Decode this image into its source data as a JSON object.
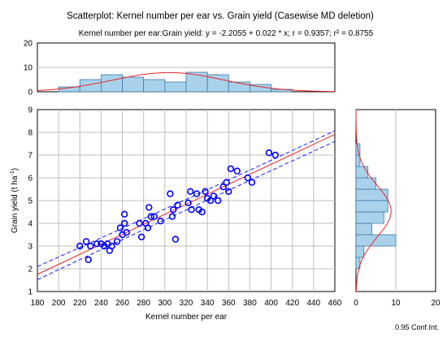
{
  "chart_data": {
    "type": "scatter",
    "title": "Scatterplot: Kernel number per ear vs. Grain yield (Casewise MD deletion)",
    "subtitle": "Kernel number per ear:Grain yield: y = -2.2055 + 0.022 * x;  r = 0.9357; r² = 0.8755",
    "xlabel": "Kernel number per ear",
    "ylabel_main": "Grain yield (t ha",
    "ylabel_sup": "-1",
    "ylabel_close": ")",
    "footnote": "0.95 Conf.Int.",
    "xlim": [
      180,
      460
    ],
    "ylim": [
      1,
      9
    ],
    "grid": true,
    "x_ticks": [
      "180",
      "200",
      "220",
      "240",
      "260",
      "280",
      "300",
      "320",
      "340",
      "360",
      "380",
      "400",
      "420",
      "440",
      "460"
    ],
    "y_ticks": [
      "1",
      "2",
      "3",
      "4",
      "5",
      "6",
      "7",
      "8",
      "9"
    ],
    "regression": {
      "intercept": -2.2055,
      "slope": 0.022,
      "r": 0.9357,
      "r2": 0.8755
    },
    "confidence_band": {
      "lower": [
        [
          180,
          1.52
        ],
        [
          460,
          7.6
        ]
      ],
      "upper": [
        [
          180,
          2.1
        ],
        [
          460,
          8.07
        ]
      ]
    },
    "points": [
      {
        "x": 220,
        "y": 3.0
      },
      {
        "x": 226,
        "y": 3.2
      },
      {
        "x": 228,
        "y": 2.4
      },
      {
        "x": 230,
        "y": 3.0
      },
      {
        "x": 236,
        "y": 3.1
      },
      {
        "x": 240,
        "y": 3.1
      },
      {
        "x": 243,
        "y": 3.0
      },
      {
        "x": 246,
        "y": 3.1
      },
      {
        "x": 248,
        "y": 2.8
      },
      {
        "x": 250,
        "y": 3.0
      },
      {
        "x": 255,
        "y": 3.2
      },
      {
        "x": 258,
        "y": 3.8
      },
      {
        "x": 260,
        "y": 3.5
      },
      {
        "x": 262,
        "y": 4.0
      },
      {
        "x": 262,
        "y": 4.4
      },
      {
        "x": 264,
        "y": 3.6
      },
      {
        "x": 276,
        "y": 4.0
      },
      {
        "x": 278,
        "y": 3.4
      },
      {
        "x": 282,
        "y": 4.0
      },
      {
        "x": 284,
        "y": 3.8
      },
      {
        "x": 285,
        "y": 4.7
      },
      {
        "x": 287,
        "y": 4.3
      },
      {
        "x": 290,
        "y": 4.3
      },
      {
        "x": 296,
        "y": 4.1
      },
      {
        "x": 305,
        "y": 5.3
      },
      {
        "x": 307,
        "y": 4.3
      },
      {
        "x": 308,
        "y": 4.6
      },
      {
        "x": 310,
        "y": 3.3
      },
      {
        "x": 312,
        "y": 4.8
      },
      {
        "x": 322,
        "y": 4.9
      },
      {
        "x": 324,
        "y": 5.4
      },
      {
        "x": 325,
        "y": 4.6
      },
      {
        "x": 330,
        "y": 5.3
      },
      {
        "x": 332,
        "y": 4.6
      },
      {
        "x": 335,
        "y": 4.5
      },
      {
        "x": 338,
        "y": 5.4
      },
      {
        "x": 340,
        "y": 5.1
      },
      {
        "x": 343,
        "y": 5.0
      },
      {
        "x": 346,
        "y": 5.2
      },
      {
        "x": 350,
        "y": 5.0
      },
      {
        "x": 355,
        "y": 5.6
      },
      {
        "x": 358,
        "y": 5.8
      },
      {
        "x": 360,
        "y": 5.4
      },
      {
        "x": 362,
        "y": 6.4
      },
      {
        "x": 368,
        "y": 6.3
      },
      {
        "x": 378,
        "y": 6.0
      },
      {
        "x": 382,
        "y": 5.8
      },
      {
        "x": 398,
        "y": 7.1
      },
      {
        "x": 404,
        "y": 7.0
      }
    ],
    "x_histogram": {
      "ylim": [
        0,
        20
      ],
      "y_ticks": [
        "0",
        "10",
        "20"
      ],
      "bins": [
        {
          "from": 180,
          "to": 200,
          "count": 0
        },
        {
          "from": 200,
          "to": 220,
          "count": 2
        },
        {
          "from": 220,
          "to": 240,
          "count": 5
        },
        {
          "from": 240,
          "to": 260,
          "count": 7
        },
        {
          "from": 260,
          "to": 280,
          "count": 6
        },
        {
          "from": 280,
          "to": 300,
          "count": 5
        },
        {
          "from": 300,
          "to": 320,
          "count": 4
        },
        {
          "from": 320,
          "to": 340,
          "count": 8
        },
        {
          "from": 340,
          "to": 360,
          "count": 7
        },
        {
          "from": 360,
          "to": 380,
          "count": 4
        },
        {
          "from": 380,
          "to": 400,
          "count": 3
        },
        {
          "from": 400,
          "to": 420,
          "count": 1
        },
        {
          "from": 420,
          "to": 440,
          "count": 0
        },
        {
          "from": 440,
          "to": 460,
          "count": 0
        }
      ]
    },
    "y_histogram": {
      "xlim": [
        0,
        20
      ],
      "x_ticks": [
        "0",
        "10",
        "20"
      ],
      "bins": [
        {
          "from": 1.0,
          "to": 1.5,
          "count": 0
        },
        {
          "from": 1.5,
          "to": 2.0,
          "count": 0
        },
        {
          "from": 2.0,
          "to": 2.5,
          "count": 1
        },
        {
          "from": 2.5,
          "to": 3.0,
          "count": 2
        },
        {
          "from": 3.0,
          "to": 3.5,
          "count": 10
        },
        {
          "from": 3.5,
          "to": 4.0,
          "count": 4
        },
        {
          "from": 4.0,
          "to": 4.5,
          "count": 7
        },
        {
          "from": 4.5,
          "to": 5.0,
          "count": 8
        },
        {
          "from": 5.0,
          "to": 5.5,
          "count": 8
        },
        {
          "from": 5.5,
          "to": 6.0,
          "count": 5
        },
        {
          "from": 6.0,
          "to": 6.5,
          "count": 3
        },
        {
          "from": 6.5,
          "to": 7.0,
          "count": 1
        },
        {
          "from": 7.0,
          "to": 7.5,
          "count": 1
        },
        {
          "from": 7.5,
          "to": 8.0,
          "count": 0
        }
      ]
    },
    "colors": {
      "points": "#0000ff",
      "fit_line": "#e8262a",
      "conf_band": "#1a1aff",
      "hist_fill": "#a9d2ea",
      "hist_stroke": "#3a78a8",
      "normal_curve": "#e8262a",
      "grid": "#bdbdbd"
    }
  }
}
